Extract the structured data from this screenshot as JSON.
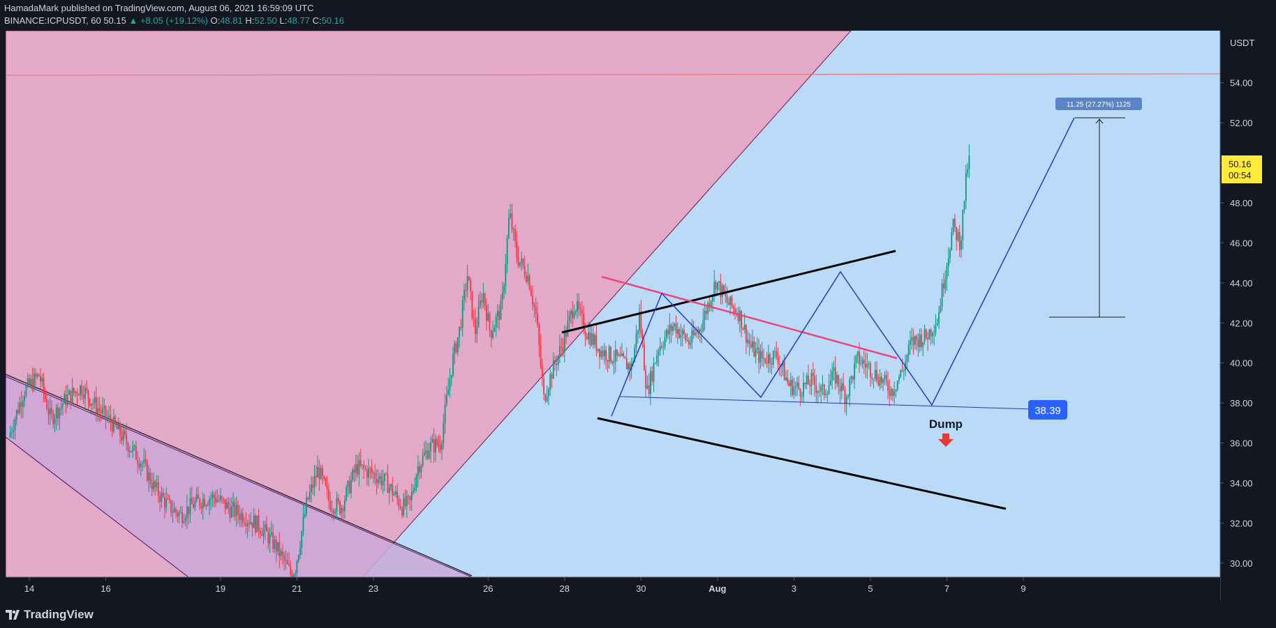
{
  "header": {
    "publish_line": "HamadaMark published on TradingView.com, August 06, 2021 16:59:09 UTC",
    "symbol": "BINANCE:ICPUSDT, 60",
    "last": "50.15",
    "change": "+8.05 (+19.12%)",
    "o_label": "O:",
    "o_value": "48.81",
    "h_label": "H:",
    "h_value": "52.50",
    "l_label": "L:",
    "l_value": "48.77",
    "c_label": "C:",
    "c_value": "50.16"
  },
  "footer": {
    "brand": "TradingView"
  },
  "colors": {
    "background": "#131722",
    "chart_bg": "#bbdaf8",
    "pink_zone": "#e3a9c9",
    "purple_channel": "#cba8d9",
    "up_candle": "#089981",
    "down_candle": "#f23645",
    "wedge_lines": "#000000",
    "pattern_lines": "#1b3fc4",
    "pink_line": "#f0427a",
    "price_label_bg": "#2962ff",
    "current_price_bg": "#ffeb3b"
  },
  "chart_data": {
    "type": "candlestick",
    "symbol": "ICPUSDT",
    "exchange": "BINANCE",
    "interval": "60",
    "currency_label": "USDT",
    "ylim": [
      29.3,
      56.6
    ],
    "y_ticks": [
      "30.00",
      "32.00",
      "34.00",
      "36.00",
      "38.00",
      "40.00",
      "42.00",
      "44.00",
      "46.00",
      "48.00",
      "50.00",
      "52.00",
      "54.00"
    ],
    "x_ticks": [
      {
        "label": "14",
        "day": 14
      },
      {
        "label": "16",
        "day": 16
      },
      {
        "label": "19",
        "day": 19
      },
      {
        "label": "21",
        "day": 21
      },
      {
        "label": "23",
        "day": 23
      },
      {
        "label": "26",
        "day": 26
      },
      {
        "label": "28",
        "day": 28
      },
      {
        "label": "30",
        "day": 30
      },
      {
        "label": "Aug",
        "day": 32
      },
      {
        "label": "3",
        "day": 34
      },
      {
        "label": "5",
        "day": 36
      },
      {
        "label": "7",
        "day": 38
      },
      {
        "label": "9",
        "day": 40
      }
    ],
    "current_price": "50.16",
    "countdown": "00:54",
    "price_label": "38.39",
    "annotation": "Dump",
    "measure_label": "11.25 (27.27%) 1125",
    "horizontal_line_price": 54.7,
    "price_path": [
      [
        13.5,
        36.3
      ],
      [
        13.9,
        38.6
      ],
      [
        14.3,
        39.4
      ],
      [
        14.6,
        37.2
      ],
      [
        15.0,
        38.2
      ],
      [
        15.4,
        38.8
      ],
      [
        15.8,
        37.8
      ],
      [
        16.2,
        37.0
      ],
      [
        16.6,
        36.0
      ],
      [
        17.0,
        35.0
      ],
      [
        17.3,
        33.8
      ],
      [
        17.7,
        32.8
      ],
      [
        18.0,
        32.4
      ],
      [
        18.3,
        32.9
      ],
      [
        18.6,
        33.2
      ],
      [
        18.9,
        33.3
      ],
      [
        19.3,
        32.7
      ],
      [
        19.7,
        32.3
      ],
      [
        20.1,
        31.8
      ],
      [
        20.5,
        30.8
      ],
      [
        20.9,
        29.4
      ],
      [
        21.0,
        29.8
      ],
      [
        21.3,
        33.0
      ],
      [
        21.6,
        34.7
      ],
      [
        21.9,
        33.0
      ],
      [
        22.2,
        32.8
      ],
      [
        22.6,
        34.8
      ],
      [
        23.0,
        34.5
      ],
      [
        23.4,
        34.0
      ],
      [
        23.8,
        32.8
      ],
      [
        24.0,
        33.0
      ],
      [
        24.2,
        34.8
      ],
      [
        24.5,
        35.8
      ],
      [
        24.8,
        36.0
      ],
      [
        25.1,
        40.0
      ],
      [
        25.3,
        41.7
      ],
      [
        25.5,
        44.4
      ],
      [
        25.7,
        41.5
      ],
      [
        25.9,
        43.6
      ],
      [
        26.1,
        41.5
      ],
      [
        26.4,
        42.8
      ],
      [
        26.6,
        47.5
      ],
      [
        26.8,
        45.3
      ],
      [
        27.1,
        44.3
      ],
      [
        27.3,
        42.3
      ],
      [
        27.5,
        38.2
      ],
      [
        27.7,
        39.5
      ],
      [
        28.0,
        41.0
      ],
      [
        28.3,
        43.0
      ],
      [
        28.6,
        41.6
      ],
      [
        29.0,
        40.6
      ],
      [
        29.4,
        40.2
      ],
      [
        29.8,
        39.8
      ],
      [
        30.0,
        42.4
      ],
      [
        30.2,
        38.5
      ],
      [
        30.5,
        40.8
      ],
      [
        30.9,
        41.9
      ],
      [
        31.3,
        41.0
      ],
      [
        31.6,
        41.8
      ],
      [
        32.0,
        44.1
      ],
      [
        32.3,
        43.0
      ],
      [
        32.6,
        42.5
      ],
      [
        32.9,
        40.8
      ],
      [
        33.2,
        40.2
      ],
      [
        33.6,
        40.4
      ],
      [
        33.9,
        38.9
      ],
      [
        34.2,
        38.7
      ],
      [
        34.5,
        39.1
      ],
      [
        34.8,
        38.5
      ],
      [
        35.1,
        39.4
      ],
      [
        35.4,
        38.3
      ],
      [
        35.7,
        40.2
      ],
      [
        36.0,
        39.8
      ],
      [
        36.3,
        39.2
      ],
      [
        36.6,
        38.6
      ],
      [
        36.9,
        39.7
      ],
      [
        37.1,
        41.0
      ],
      [
        37.3,
        41.2
      ],
      [
        37.5,
        41.3
      ],
      [
        37.8,
        42.2
      ],
      [
        38.0,
        44.6
      ],
      [
        38.2,
        46.8
      ],
      [
        38.4,
        46.0
      ],
      [
        38.5,
        48.3
      ],
      [
        38.6,
        50.1
      ]
    ]
  }
}
